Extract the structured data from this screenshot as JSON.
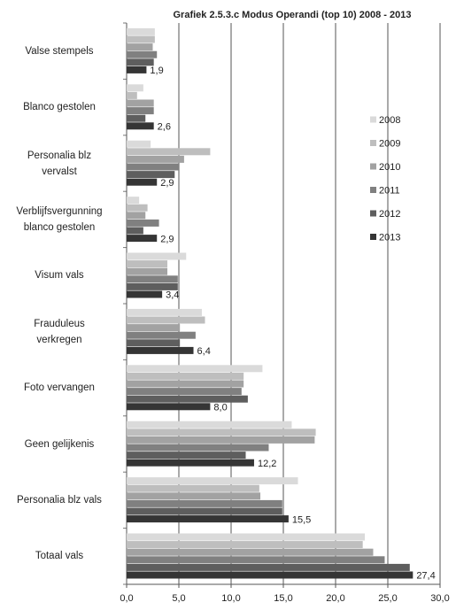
{
  "chart_data": {
    "type": "hbar",
    "title": "Grafiek 2.5.3.c Modus Operandi (top 10) 2008 - 2013",
    "categories": [
      "Valse stempels",
      "Blanco gestolen",
      "Personalia blz\nvervalst",
      "Verblijfsvergunning\nblanco gestolen",
      "Visum vals",
      "Frauduleus\nverkregen",
      "Foto vervangen",
      "Geen gelijkenis",
      "Personalia blz vals",
      "Totaal vals"
    ],
    "series": [
      {
        "name": "2008",
        "color": "#dadada",
        "values": [
          2.7,
          1.6,
          2.3,
          1.2,
          5.7,
          7.2,
          13.0,
          15.8,
          16.4,
          22.8
        ]
      },
      {
        "name": "2009",
        "color": "#bebebe",
        "values": [
          2.7,
          1.0,
          8.0,
          2.0,
          3.9,
          7.5,
          11.2,
          18.1,
          12.7,
          22.6
        ]
      },
      {
        "name": "2010",
        "color": "#a2a2a2",
        "values": [
          2.5,
          2.6,
          5.5,
          1.8,
          3.9,
          5.1,
          11.2,
          18.0,
          12.8,
          23.6
        ]
      },
      {
        "name": "2011",
        "color": "#808080",
        "values": [
          2.9,
          2.6,
          5.0,
          3.1,
          4.9,
          6.6,
          11.0,
          13.6,
          14.9,
          24.7
        ]
      },
      {
        "name": "2012",
        "color": "#5e5e5e",
        "values": [
          2.6,
          1.8,
          4.6,
          1.6,
          4.9,
          5.1,
          11.6,
          11.4,
          14.9,
          27.1
        ]
      },
      {
        "name": "2013",
        "color": "#353535",
        "values": [
          1.9,
          2.6,
          2.9,
          2.9,
          3.4,
          6.4,
          8.0,
          12.2,
          15.5,
          27.4
        ],
        "value_labels": [
          "1,9",
          "2,6",
          "2,9",
          "2,9",
          "3,4",
          "6,4",
          "8,0",
          "12,2",
          "15,5",
          "27,4"
        ]
      }
    ],
    "xlim": [
      0,
      30
    ],
    "xticks": [
      {
        "value": 0,
        "label": "0,0"
      },
      {
        "value": 5,
        "label": "5,0"
      },
      {
        "value": 10,
        "label": "10,0"
      },
      {
        "value": 15,
        "label": "15,0"
      },
      {
        "value": 20,
        "label": "20,0"
      },
      {
        "value": 25,
        "label": "25,0"
      },
      {
        "value": 30,
        "label": "30,0"
      }
    ],
    "grid": true,
    "legend": "right"
  }
}
